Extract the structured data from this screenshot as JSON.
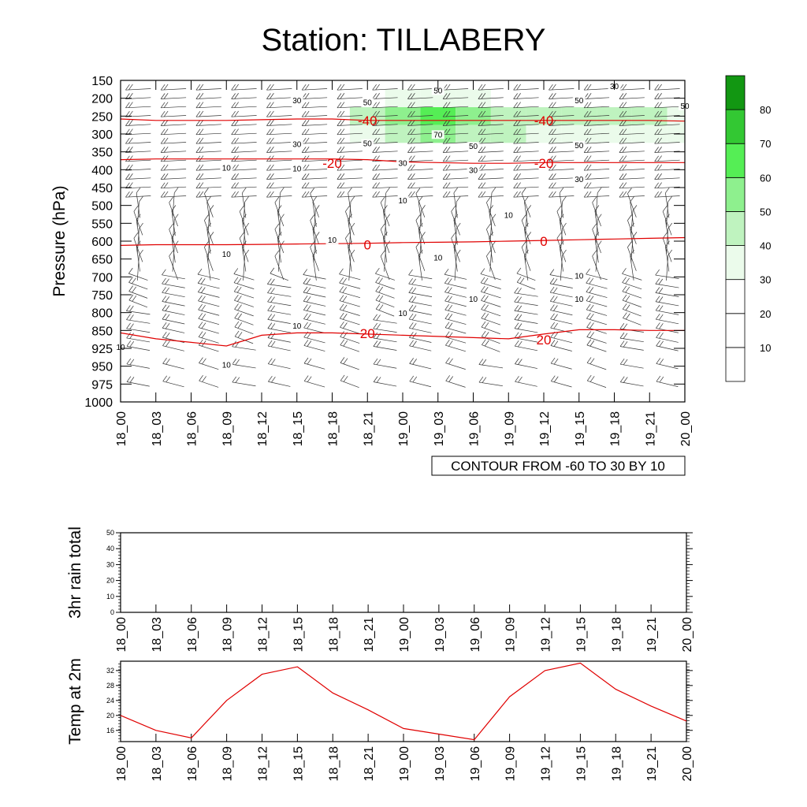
{
  "title": "Station: TILLABERY",
  "colors": {
    "shade": [
      "#ffffff",
      "#ffffff",
      "#ffffff",
      "#ebfbeb",
      "#bff3bf",
      "#8ef08e",
      "#55ee55",
      "#33c833",
      "#129712"
    ],
    "temp_contour": "#e00000",
    "line": "#000000"
  },
  "time_labels": [
    "18_00",
    "18_03",
    "18_06",
    "18_09",
    "18_12",
    "18_15",
    "18_18",
    "18_21",
    "19_00",
    "19_03",
    "19_06",
    "19_09",
    "19_12",
    "19_15",
    "19_18",
    "19_21",
    "20_00"
  ],
  "chart_data": [
    {
      "type": "heatmap",
      "title": "",
      "ylabel": "Pressure (hPa)",
      "x": [
        "18_00",
        "18_03",
        "18_06",
        "18_09",
        "18_12",
        "18_15",
        "18_18",
        "18_21",
        "19_00",
        "19_03",
        "19_06",
        "19_09",
        "19_12",
        "19_15",
        "19_18",
        "19_21",
        "20_00"
      ],
      "y_ticks": [
        150,
        200,
        250,
        300,
        350,
        400,
        450,
        500,
        550,
        600,
        650,
        700,
        750,
        800,
        850,
        925,
        950,
        975,
        1000
      ],
      "colorbar": {
        "levels": [
          10,
          20,
          30,
          40,
          50,
          60,
          70,
          80
        ]
      },
      "info_label": "CONTOUR FROM -60 TO 30 BY 10",
      "shaded_levels_by_pressure": [
        {
          "p": 150,
          "values": [
            0,
            1,
            1,
            1,
            1,
            2,
            2,
            2,
            2,
            2,
            2,
            2,
            2,
            2,
            1,
            1,
            0
          ]
        },
        {
          "p": 200,
          "values": [
            0,
            0,
            0,
            0,
            1,
            1,
            2,
            2,
            3,
            3,
            3,
            2,
            2,
            2,
            2,
            2,
            1
          ]
        },
        {
          "p": 250,
          "values": [
            0,
            0,
            0,
            0,
            0,
            0,
            1,
            4,
            5,
            6,
            5,
            4,
            4,
            4,
            4,
            4,
            3
          ]
        },
        {
          "p": 300,
          "values": [
            0,
            0,
            0,
            0,
            0,
            0,
            0,
            3,
            4,
            5,
            4,
            4,
            3,
            3,
            3,
            3,
            3
          ]
        },
        {
          "p": 350,
          "values": [
            0,
            0,
            0,
            0,
            0,
            0,
            0,
            1,
            1,
            2,
            2,
            2,
            2,
            2,
            2,
            2,
            2
          ]
        },
        {
          "p": 400,
          "values": [
            0,
            0,
            0,
            0,
            0,
            0,
            0,
            0,
            0,
            0,
            0,
            1,
            1,
            1,
            1,
            1,
            1
          ]
        },
        {
          "p": 450,
          "values": [
            0,
            0,
            0,
            0,
            0,
            0,
            0,
            0,
            0,
            0,
            0,
            0,
            0,
            0,
            0,
            1,
            1
          ]
        }
      ],
      "temperature_contours": [
        {
          "label": "-40",
          "p": [
            258,
            262,
            262,
            262,
            260,
            258,
            258,
            262,
            262,
            262,
            262,
            262,
            262,
            262,
            262,
            262,
            264
          ]
        },
        {
          "label": "-20",
          "p": [
            372,
            370,
            370,
            370,
            370,
            370,
            370,
            372,
            378,
            380,
            382,
            382,
            380,
            380,
            380,
            380,
            380
          ]
        },
        {
          "label": "0",
          "p": [
            612,
            610,
            610,
            610,
            609,
            608,
            607,
            606,
            604,
            603,
            602,
            600,
            598,
            596,
            594,
            592,
            590
          ]
        },
        {
          "label": "20",
          "p": [
            860,
            885,
            900,
            915,
            870,
            860,
            860,
            865,
            870,
            875,
            880,
            885,
            865,
            848,
            848,
            850,
            850
          ]
        }
      ],
      "contour_labels_red": [
        {
          "text": "-40",
          "x": "18_21",
          "p": 262
        },
        {
          "text": "-40",
          "x": "19_12",
          "p": 262
        },
        {
          "text": "-20",
          "x": "18_18",
          "p": 382
        },
        {
          "text": "-20",
          "x": "19_12",
          "p": 382
        },
        {
          "text": "0",
          "x": "18_21",
          "p": 610
        },
        {
          "text": "0",
          "x": "19_12",
          "p": 600
        },
        {
          "text": "20",
          "x": "18_21",
          "p": 862
        },
        {
          "text": "20",
          "x": "19_12",
          "p": 888
        }
      ],
      "contour_labels_black": [
        {
          "text": "50",
          "x": "19_03",
          "p": 182
        },
        {
          "text": "50",
          "x": "19_15",
          "p": 210
        },
        {
          "text": "50",
          "x": "20_00",
          "p": 225
        },
        {
          "text": "30",
          "x": "19_18",
          "p": 170
        },
        {
          "text": "30",
          "x": "18_15",
          "p": 210
        },
        {
          "text": "50",
          "x": "18_21",
          "p": 215
        },
        {
          "text": "70",
          "x": "19_03",
          "p": 305
        },
        {
          "text": "50",
          "x": "18_21",
          "p": 330
        },
        {
          "text": "50",
          "x": "19_06",
          "p": 338
        },
        {
          "text": "50",
          "x": "19_15",
          "p": 335
        },
        {
          "text": "30",
          "x": "18_15",
          "p": 332
        },
        {
          "text": "10",
          "x": "18_09",
          "p": 398
        },
        {
          "text": "10",
          "x": "18_15",
          "p": 400
        },
        {
          "text": "30",
          "x": "19_00",
          "p": 385
        },
        {
          "text": "30",
          "x": "19_06",
          "p": 405
        },
        {
          "text": "30",
          "x": "19_15",
          "p": 430
        },
        {
          "text": "10",
          "x": "19_00",
          "p": 490
        },
        {
          "text": "10",
          "x": "19_09",
          "p": 530
        },
        {
          "text": "10",
          "x": "18_18",
          "p": 600
        },
        {
          "text": "10",
          "x": "18_09",
          "p": 640
        },
        {
          "text": "10",
          "x": "19_03",
          "p": 650
        },
        {
          "text": "10",
          "x": "19_15",
          "p": 700
        },
        {
          "text": "10",
          "x": "19_06",
          "p": 765
        },
        {
          "text": "10",
          "x": "19_15",
          "p": 765
        },
        {
          "text": "10",
          "x": "19_00",
          "p": 805
        },
        {
          "text": "10",
          "x": "18_15",
          "p": 840
        },
        {
          "text": "10",
          "x": "18_00",
          "p": 925
        },
        {
          "text": "10",
          "x": "18_09",
          "p": 950
        }
      ]
    },
    {
      "type": "line",
      "title": "",
      "ylabel": "3hr rain total",
      "x": [
        "18_00",
        "18_03",
        "18_06",
        "18_09",
        "18_12",
        "18_15",
        "18_18",
        "18_21",
        "19_00",
        "19_03",
        "19_06",
        "19_09",
        "19_12",
        "19_15",
        "19_18",
        "19_21",
        "20_00"
      ],
      "values": [
        0,
        0,
        0,
        0,
        0,
        0,
        0,
        0,
        0,
        0,
        0,
        0,
        0,
        0,
        0,
        0,
        0
      ],
      "ylim": [
        0,
        50
      ],
      "y_ticks": [
        0,
        10,
        20,
        30,
        40,
        50
      ]
    },
    {
      "type": "line",
      "title": "",
      "ylabel": "Temp at 2m",
      "x": [
        "18_00",
        "18_03",
        "18_06",
        "18_09",
        "18_12",
        "18_15",
        "18_18",
        "18_21",
        "19_00",
        "19_03",
        "19_06",
        "19_09",
        "19_12",
        "19_15",
        "19_18",
        "19_21",
        "20_00"
      ],
      "values": [
        20,
        16,
        14,
        24,
        31,
        33,
        26,
        21.5,
        16.5,
        15,
        13.5,
        25,
        32,
        34,
        27,
        22.5,
        18.5
      ],
      "ylim": [
        13,
        34.5
      ],
      "y_ticks": [
        16,
        20,
        24,
        28,
        32
      ]
    }
  ]
}
